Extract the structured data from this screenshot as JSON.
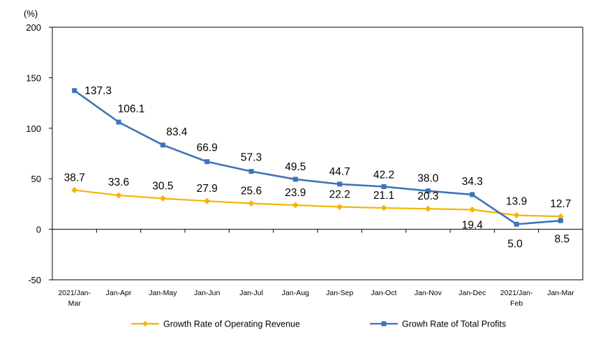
{
  "chart_data": {
    "type": "line",
    "unit_label": "(%)",
    "categories": [
      [
        "2021/Jan-",
        "Mar"
      ],
      [
        "Jan-Apr"
      ],
      [
        "Jan-May"
      ],
      [
        "Jan-Jun"
      ],
      [
        "Jan-Jul"
      ],
      [
        "Jan-Aug"
      ],
      [
        "Jan-Sep"
      ],
      [
        "Jan-Oct"
      ],
      [
        "Jan-Nov"
      ],
      [
        "Jan-Dec"
      ],
      [
        "2021/Jan-",
        "Feb"
      ],
      [
        "Jan-Mar"
      ]
    ],
    "ylim": [
      -50,
      200
    ],
    "yticks": [
      -50,
      0,
      50,
      100,
      150,
      200
    ],
    "grid": false,
    "legend_position": "bottom",
    "series": [
      {
        "name": "Growth Rate of Operating Revenue",
        "color": "#F5B400",
        "marker": "diamond",
        "values": [
          38.7,
          33.6,
          30.5,
          27.9,
          25.6,
          23.9,
          22.2,
          21.1,
          20.3,
          19.4,
          13.9,
          12.7
        ],
        "labels": [
          "38.7",
          "33.6",
          "30.5",
          "27.9",
          "25.6",
          "23.9",
          "22.2",
          "21.1",
          "20.3",
          "19.4",
          "13.9",
          "12.7"
        ]
      },
      {
        "name": "Growh Rate of Total Profits",
        "color": "#3D73B9",
        "marker": "square",
        "values": [
          137.3,
          106.1,
          83.4,
          66.9,
          57.3,
          49.5,
          44.7,
          42.2,
          38.0,
          34.3,
          5.0,
          8.5
        ],
        "labels": [
          "137.3",
          "106.1",
          "83.4",
          "66.9",
          "57.3",
          "49.5",
          "44.7",
          "42.2",
          "38.0",
          "34.3",
          "5.0",
          "8.5"
        ]
      }
    ]
  }
}
